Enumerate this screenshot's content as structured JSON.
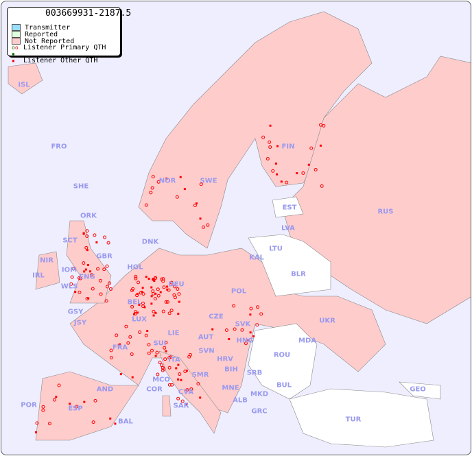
{
  "title": "003669931-2187.5",
  "legend": {
    "items": [
      {
        "label": "Transmitter",
        "color": "#99ddff"
      },
      {
        "label": "Reported",
        "color": "#ddffdd"
      },
      {
        "label": "Not Reported",
        "color": "#ffcccc"
      },
      {
        "label": "Listener Primary QTH",
        "color": "#ff0000"
      },
      {
        "label": "Listener Other QTH",
        "color": "#ff0000"
      }
    ]
  },
  "colors": {
    "sea": "#eeeeff",
    "not_reported": "#ffcccc",
    "no_data": "#ffffff",
    "label": "#9999ee",
    "marker": "#ff0000"
  },
  "countries": [
    "ISL",
    "FRO",
    "SHE",
    "ORK",
    "NOR",
    "SWE",
    "FIN",
    "EST",
    "LVA",
    "LTU",
    "RUS",
    "KAL",
    "BLR",
    "DNK",
    "HOL",
    "DEU",
    "POL",
    "IRL",
    "GBR",
    "WLS",
    "ENG",
    "IOM",
    "NIR",
    "SCT",
    "BEL",
    "LUX",
    "GSY",
    "JSY",
    "FRA",
    "SUI",
    "LIE",
    "AUT",
    "CZE",
    "SVK",
    "HNG",
    "UKR",
    "MDA",
    "ROU",
    "SVN",
    "HRV",
    "BIH",
    "SRB",
    "MNE",
    "ALB",
    "MKD",
    "BUL",
    "GRC",
    "TUR",
    "GEO",
    "ITA",
    "SMR",
    "CVA",
    "MCO",
    "COR",
    "SAR",
    "AND",
    "ESP",
    "POR",
    "BAL"
  ]
}
